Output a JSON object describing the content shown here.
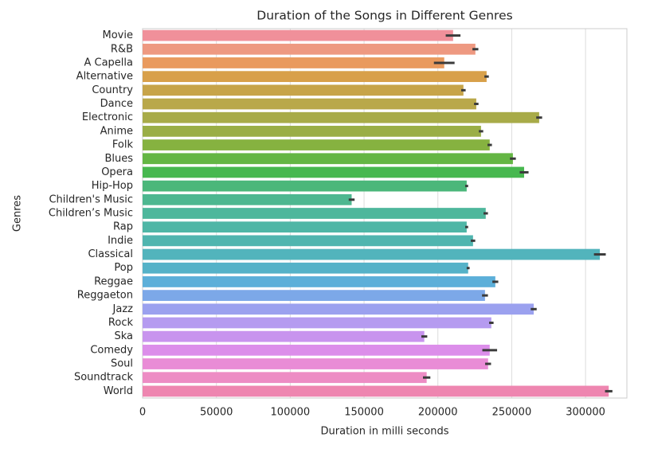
{
  "chart_data": {
    "type": "barh",
    "title": "Duration of the Songs in Different Genres",
    "x_label": "Duration in milli seconds",
    "y_label": "Genres",
    "categories": [
      "Movie",
      "R&B",
      "A Capella",
      "Alternative",
      "Country",
      "Dance",
      "Electronic",
      "Anime",
      "Folk",
      "Blues",
      "Opera",
      "Hip-Hop",
      "Children's Music",
      "Children’s Music",
      "Rap",
      "Indie",
      "Classical",
      "Pop",
      "Reggae",
      "Reggaeton",
      "Jazz",
      "Rock",
      "Ska",
      "Comedy",
      "Soul",
      "Soundtrack",
      "World"
    ],
    "values": [
      210300,
      225400,
      204300,
      233000,
      217300,
      226000,
      268600,
      229200,
      235100,
      250800,
      258400,
      219500,
      141600,
      232400,
      219500,
      223800,
      309700,
      220500,
      238900,
      231900,
      264900,
      236200,
      190800,
      235100,
      234000,
      192400,
      315700
    ],
    "errors": [
      5000,
      2000,
      7000,
      1500,
      1500,
      1500,
      2000,
      1500,
      1500,
      2000,
      3000,
      1000,
      2000,
      1500,
      1000,
      1500,
      4000,
      1000,
      2000,
      2000,
      2000,
      1500,
      2000,
      5000,
      2000,
      2500,
      2500
    ],
    "colors": [
      "#f0909a",
      "#ee9981",
      "#e99a5e",
      "#d8a04a",
      "#c7a449",
      "#b9a84a",
      "#a8ab48",
      "#9aae46",
      "#86b240",
      "#64b644",
      "#47b84f",
      "#4bb77a",
      "#4db790",
      "#4eb79c",
      "#4fb6a6",
      "#50b5af",
      "#52b4bc",
      "#55b2c8",
      "#5cafd9",
      "#7ca8e8",
      "#9ba1ef",
      "#b59bf0",
      "#c894ee",
      "#dc8eea",
      "#e98cd6",
      "#ed8cc4",
      "#ee86b0"
    ],
    "error_color": "#3b3b3b",
    "xlim": [
      0,
      328000
    ],
    "xticks": [
      0,
      50000,
      100000,
      150000,
      200000,
      250000,
      300000
    ],
    "grid": true
  }
}
